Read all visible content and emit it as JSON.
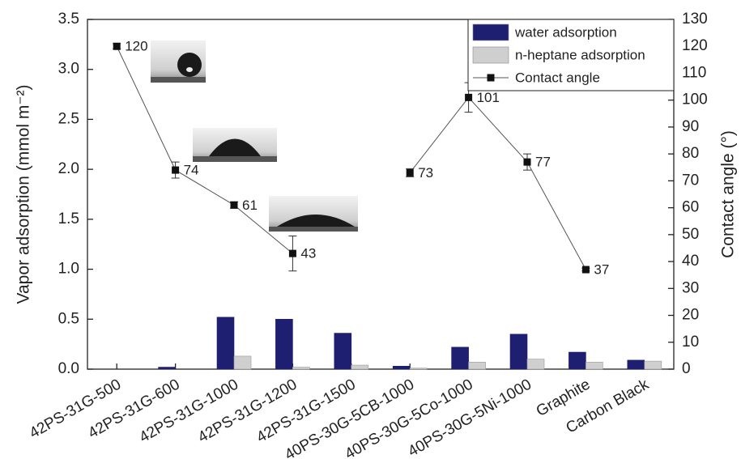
{
  "chart_data": {
    "type": "bar",
    "y_label": "Vapor adsorption (mmol m⁻²)",
    "y2_label": "Contact angle (°)",
    "categories": [
      "42PS-31G-500",
      "42PS-31G-600",
      "42PS-31G-1000",
      "42PS-31G-1200",
      "42PS-31G-1500",
      "40PS-30G-5CB-1000",
      "40PS-30G-5Co-1000",
      "40PS-30G-5Ni-1000",
      "Graphite",
      "Carbon Black"
    ],
    "series": [
      {
        "name": "water adsorption",
        "color": "#1f1f72",
        "values": [
          0,
          0.02,
          0.52,
          0.5,
          0.36,
          0.03,
          0.22,
          0.35,
          0.17,
          0.09
        ]
      },
      {
        "name": "n-heptane adsorption",
        "color": "#cfcfcf",
        "values": [
          0,
          0,
          0.13,
          0.02,
          0.04,
          0.01,
          0.07,
          0.1,
          0.07,
          0.08
        ]
      },
      {
        "name": "Contact angle",
        "color": "#111111",
        "type": "line",
        "axis": "y2",
        "values": [
          120,
          74,
          61,
          43,
          null,
          73,
          101,
          77,
          37,
          null
        ],
        "errors": [
          1,
          3,
          1.2,
          6.5,
          null,
          1.5,
          5.5,
          3,
          0.5,
          null
        ]
      }
    ],
    "ylim": [
      0,
      3.5
    ],
    "yticks": [
      {
        "value": 0,
        "label": "0.0"
      },
      0.5,
      {
        "value": 1,
        "label": "1.0"
      },
      1.5,
      {
        "value": 2,
        "label": "2.0"
      },
      2.5,
      {
        "value": 3,
        "label": "3.0"
      },
      3.5
    ],
    "y2lim": [
      0,
      130
    ],
    "y2ticks": [
      0,
      10,
      20,
      30,
      40,
      50,
      60,
      70,
      80,
      90,
      100,
      110,
      120,
      130
    ],
    "legend": "upper right"
  }
}
